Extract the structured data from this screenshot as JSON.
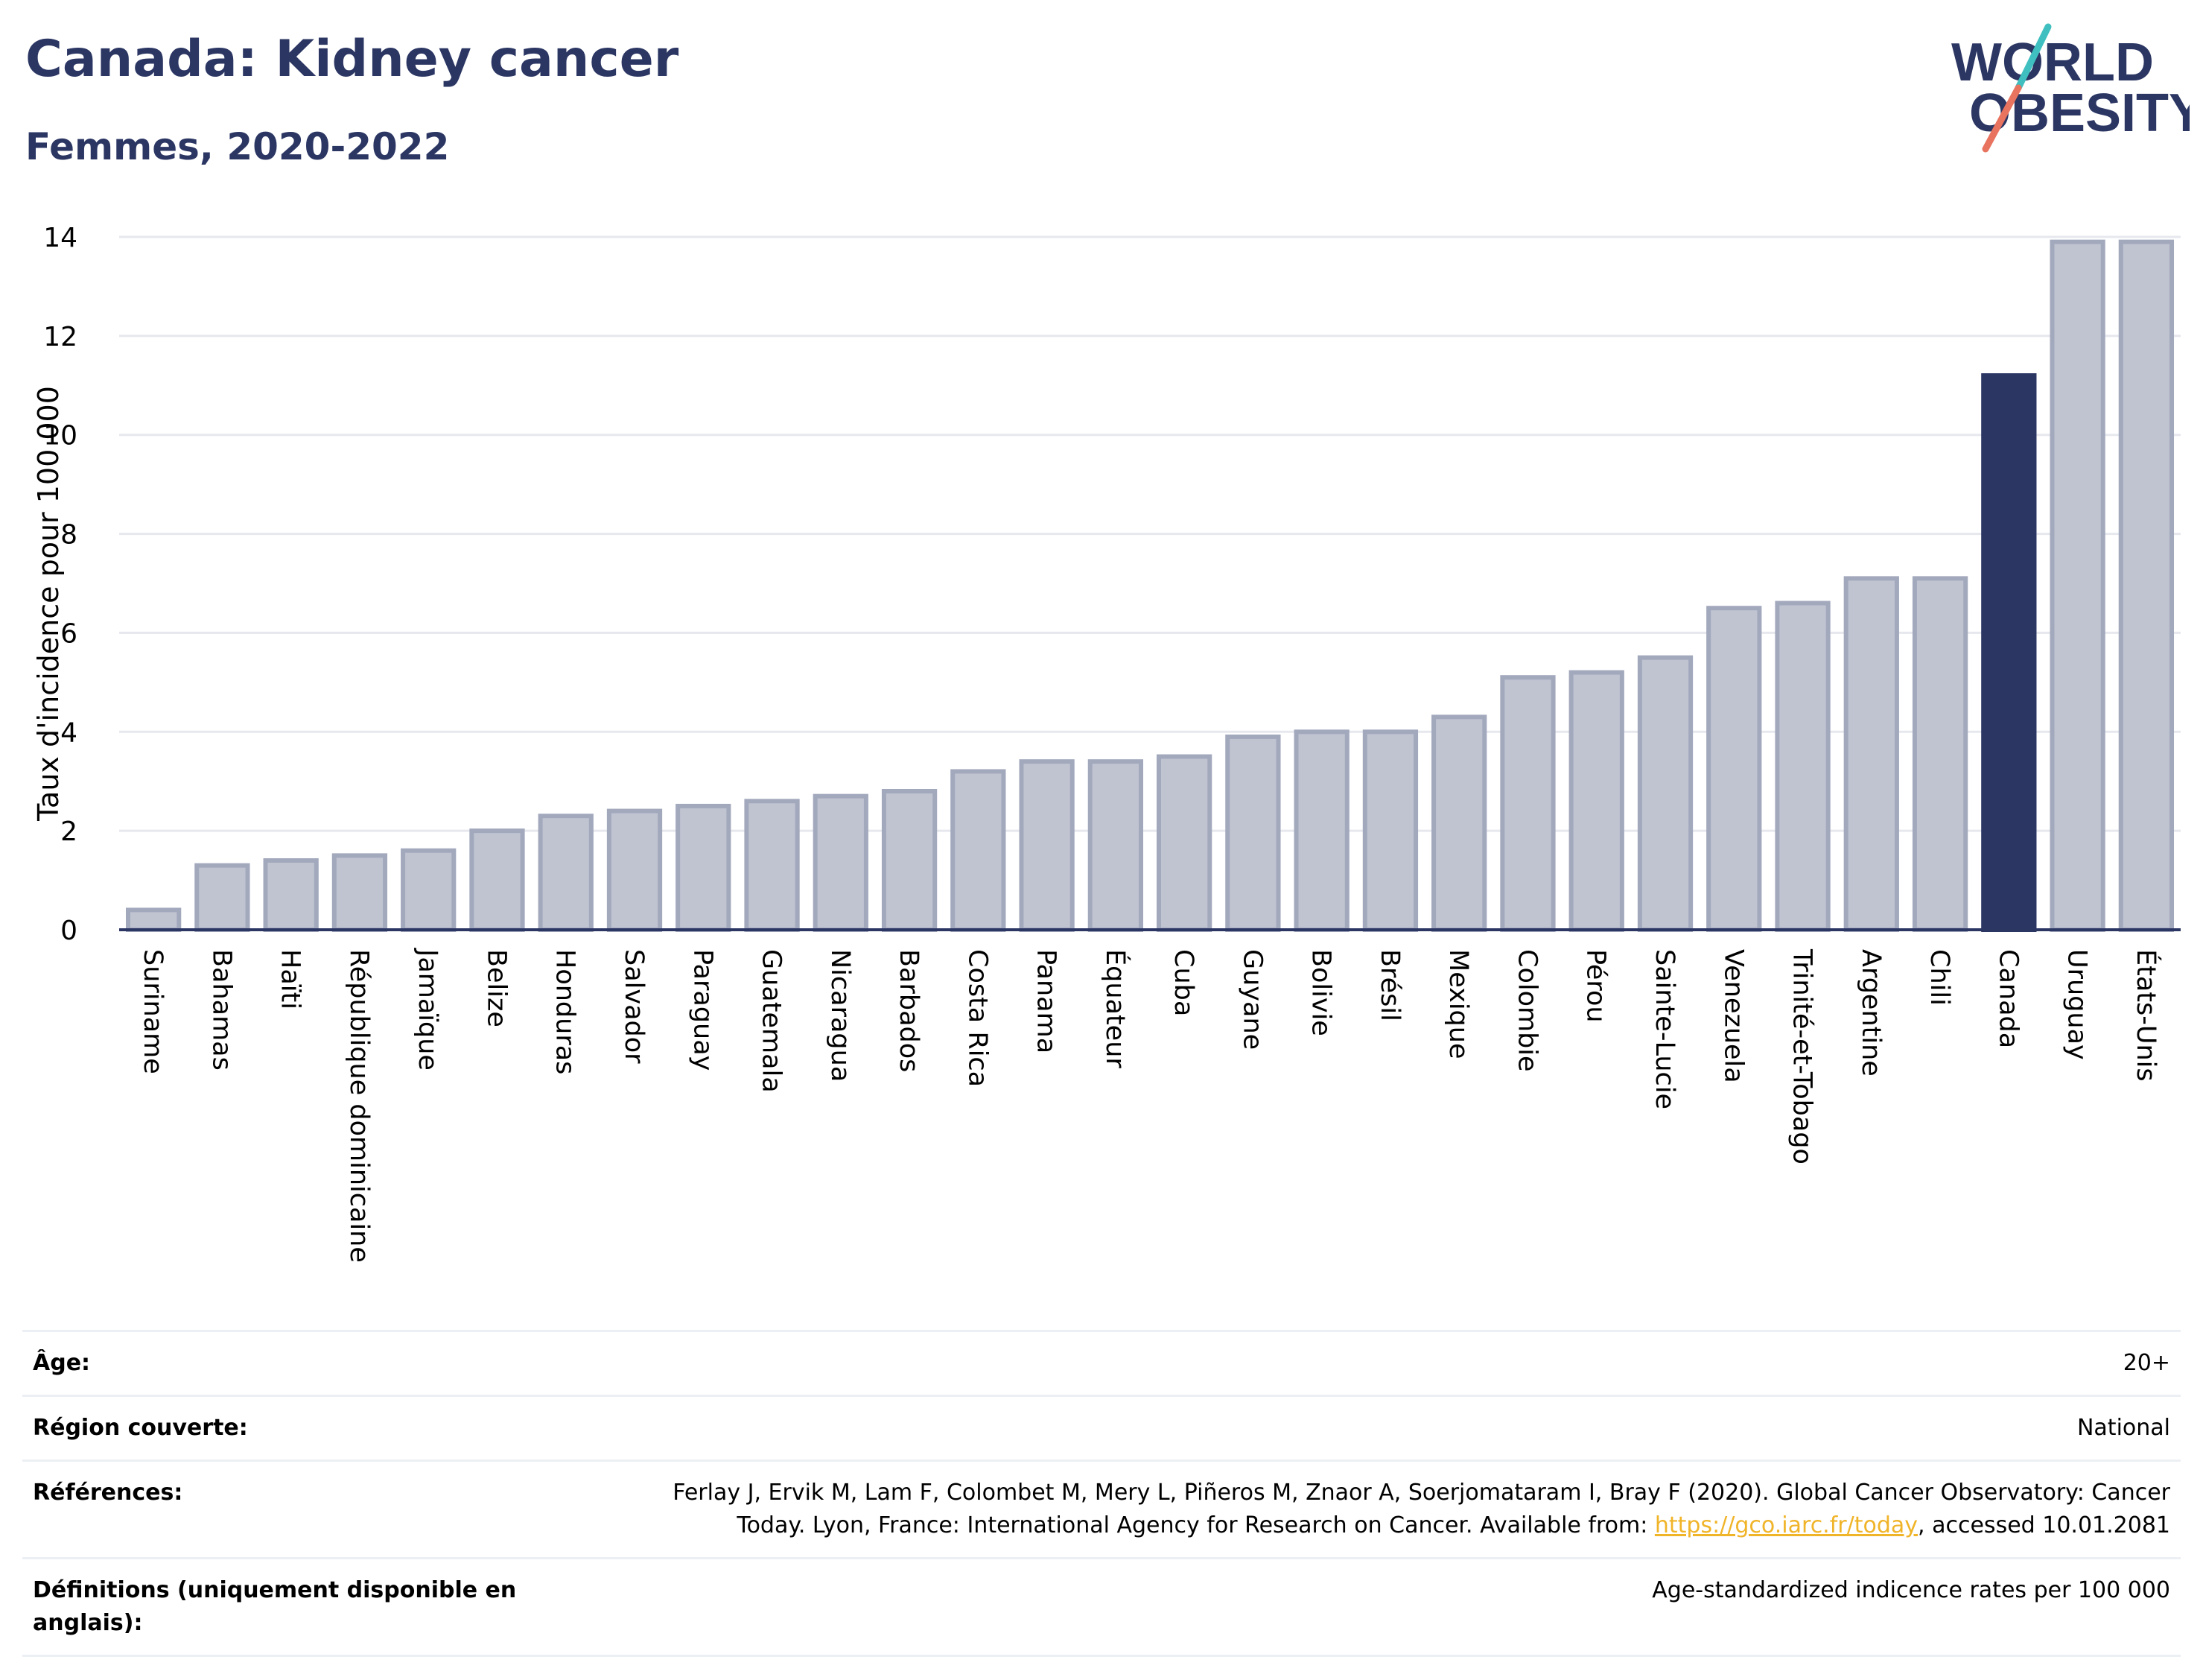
{
  "header": {
    "title": "Canada: Kidney cancer",
    "subtitle": "Femmes, 2020-2022"
  },
  "logo": {
    "line1": "WORLD",
    "line2": "OBESITY",
    "colors": {
      "text": "#2b3663",
      "slash_teal": "#3fbfbf",
      "slash_coral": "#e8735f"
    }
  },
  "chart_data": {
    "type": "bar",
    "ylabel": "Taux d'incidence pour 100 000",
    "xlabel": "",
    "ylim": [
      0,
      14
    ],
    "yticks": [
      0,
      2,
      4,
      6,
      8,
      10,
      12,
      14
    ],
    "grid": true,
    "highlight": "Canada",
    "colors": {
      "bar": "#c0c4d1",
      "bar_border": "#a3a9bd",
      "highlight": "#2b3663",
      "grid": "#e6e8ee",
      "axis": "#2b3663"
    },
    "categories": [
      "Suriname",
      "Bahamas",
      "Haïti",
      "République dominicaine",
      "Jamaïque",
      "Belize",
      "Honduras",
      "Salvador",
      "Paraguay",
      "Guatemala",
      "Nicaragua",
      "Barbados",
      "Costa Rica",
      "Panama",
      "Équateur",
      "Cuba",
      "Guyane",
      "Bolivie",
      "Brésil",
      "Mexique",
      "Colombie",
      "Pérou",
      "Sainte-Lucie",
      "Venezuela",
      "Trinité-et-Tobago",
      "Argentine",
      "Chili",
      "Canada",
      "Uruguay",
      "États-Unis"
    ],
    "values": [
      0.4,
      1.3,
      1.4,
      1.5,
      1.6,
      2.0,
      2.3,
      2.4,
      2.5,
      2.6,
      2.7,
      2.8,
      3.2,
      3.4,
      3.4,
      3.5,
      3.9,
      4.0,
      4.0,
      4.3,
      5.1,
      5.2,
      5.5,
      6.5,
      6.6,
      7.1,
      7.1,
      11.2,
      13.9,
      13.9
    ]
  },
  "info": {
    "age_label": "Âge:",
    "age_value": "20+",
    "region_label": "Région couverte:",
    "region_value": "National",
    "references_label": "Références:",
    "references_text_1": "Ferlay J, Ervik M, Lam F, Colombet M, Mery L, Piñeros M, Znaor A, Soerjomataram I, Bray F (2020). Global Cancer Observatory: Cancer",
    "references_text_2": "Today. Lyon, France: International Agency for Research on Cancer. Available from: ",
    "references_link": "https://gco.iarc.fr/today",
    "references_text_3": ", accessed 10.01.2081",
    "definitions_label": "Définitions (uniquement disponible en anglais):",
    "definitions_value": "Age-standardized indicence rates per 100 000"
  }
}
